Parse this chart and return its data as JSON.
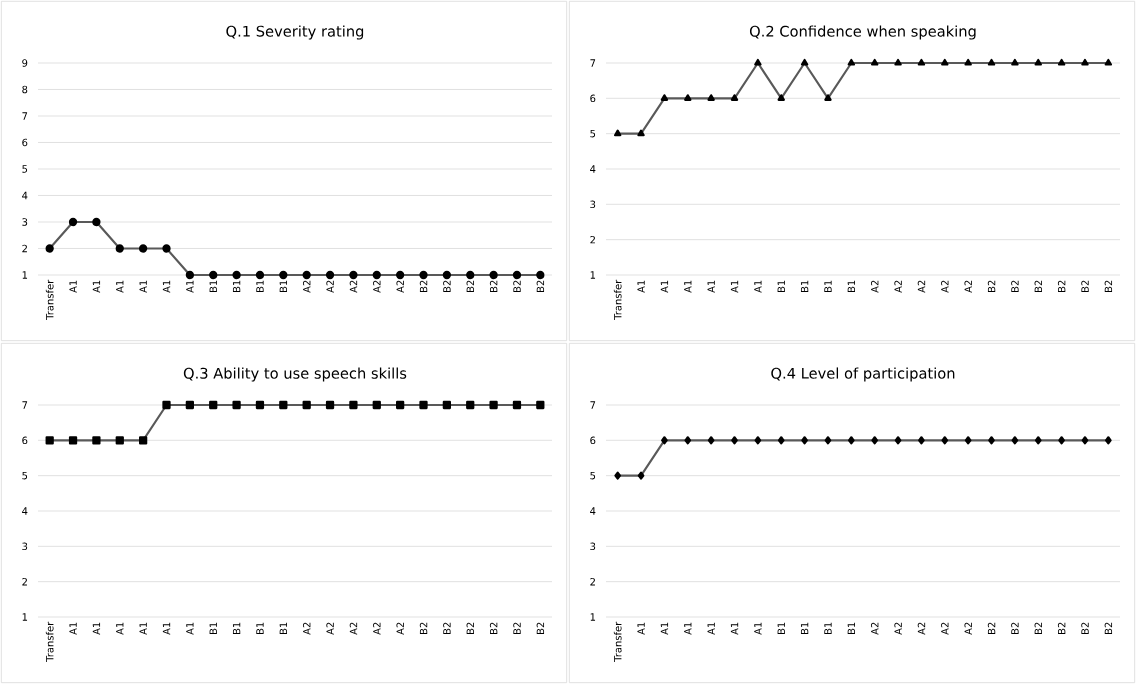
{
  "chart_data": [
    {
      "type": "line",
      "title": "Q.1 Severity rating",
      "categories": [
        "Transfer",
        "A1",
        "A1",
        "A1",
        "A1",
        "A1",
        "A1",
        "B1",
        "B1",
        "B1",
        "B1",
        "A2",
        "A2",
        "A2",
        "A2",
        "A2",
        "B2",
        "B2",
        "B2",
        "B2",
        "B2",
        "B2"
      ],
      "values": [
        2,
        3,
        3,
        2,
        2,
        2,
        1,
        1,
        1,
        1,
        1,
        1,
        1,
        1,
        1,
        1,
        1,
        1,
        1,
        1,
        1,
        1
      ],
      "color": "#595959",
      "marker": "circle",
      "ylim": [
        1,
        9
      ],
      "yticks": [
        1,
        2,
        3,
        4,
        5,
        6,
        7,
        8,
        9
      ],
      "grid": "y"
    },
    {
      "type": "line",
      "title": "Q.2 Confidence when speaking",
      "categories": [
        "Transfer",
        "A1",
        "A1",
        "A1",
        "A1",
        "A1",
        "A1",
        "B1",
        "B1",
        "B1",
        "B1",
        "A2",
        "A2",
        "A2",
        "A2",
        "A2",
        "B2",
        "B2",
        "B2",
        "B2",
        "B2",
        "B2"
      ],
      "values": [
        5,
        5,
        6,
        6,
        6,
        6,
        7,
        6,
        7,
        6,
        7,
        7,
        7,
        7,
        7,
        7,
        7,
        7,
        7,
        7,
        7,
        7
      ],
      "color": "#595959",
      "marker": "triangle",
      "ylim": [
        1,
        7
      ],
      "yticks": [
        1,
        2,
        3,
        4,
        5,
        6,
        7
      ],
      "grid": "y"
    },
    {
      "type": "line",
      "title": "Q.3 Ability to use speech skills",
      "categories": [
        "Transfer",
        "A1",
        "A1",
        "A1",
        "A1",
        "A1",
        "A1",
        "B1",
        "B1",
        "B1",
        "B1",
        "A2",
        "A2",
        "A2",
        "A2",
        "A2",
        "B2",
        "B2",
        "B2",
        "B2",
        "B2",
        "B2"
      ],
      "values": [
        6,
        6,
        6,
        6,
        6,
        7,
        7,
        7,
        7,
        7,
        7,
        7,
        7,
        7,
        7,
        7,
        7,
        7,
        7,
        7,
        7,
        7
      ],
      "color": "#595959",
      "marker": "square",
      "ylim": [
        1,
        7
      ],
      "yticks": [
        1,
        2,
        3,
        4,
        5,
        6,
        7
      ],
      "grid": "y"
    },
    {
      "type": "line",
      "title": "Q.4 Level of participation",
      "categories": [
        "Transfer",
        "A1",
        "A1",
        "A1",
        "A1",
        "A1",
        "A1",
        "B1",
        "B1",
        "B1",
        "B1",
        "A2",
        "A2",
        "A2",
        "A2",
        "A2",
        "B2",
        "B2",
        "B2",
        "B2",
        "B2",
        "B2"
      ],
      "values": [
        5,
        5,
        6,
        6,
        6,
        6,
        6,
        6,
        6,
        6,
        6,
        6,
        6,
        6,
        6,
        6,
        6,
        6,
        6,
        6,
        6,
        6
      ],
      "color": "#595959",
      "marker": "diamond",
      "ylim": [
        1,
        7
      ],
      "yticks": [
        1,
        2,
        3,
        4,
        5,
        6,
        7
      ],
      "grid": "y"
    }
  ]
}
